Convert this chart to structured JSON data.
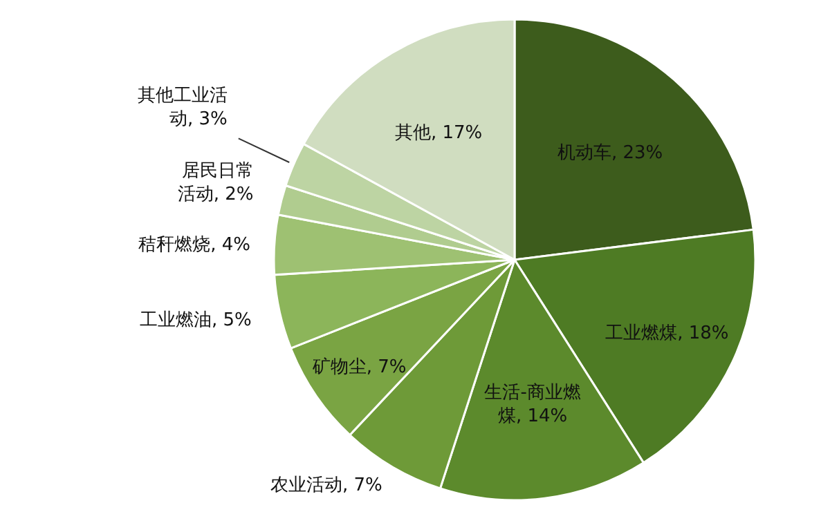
{
  "chart_data": {
    "type": "pie",
    "categories": [
      "机动车",
      "工业燃煤",
      "生活-商业燃煤",
      "农业活动",
      "矿物尘",
      "工业燃油",
      "秸秆燃烧",
      "居民日常活动",
      "其他工业活动",
      "其他"
    ],
    "values": [
      23,
      18,
      14,
      7,
      7,
      5,
      4,
      2,
      3,
      17
    ],
    "value_labels": [
      "23%",
      "18%",
      "14%",
      "7%",
      "7%",
      "5%",
      "4%",
      "2%",
      "3%",
      "17%"
    ],
    "colors": [
      "#3d5c1c",
      "#4e7b24",
      "#5c8a2c",
      "#6e9a38",
      "#7aa443",
      "#8cb55a",
      "#9ec172",
      "#b0cc8f",
      "#bdd4a3",
      "#d0ddc0"
    ]
  }
}
